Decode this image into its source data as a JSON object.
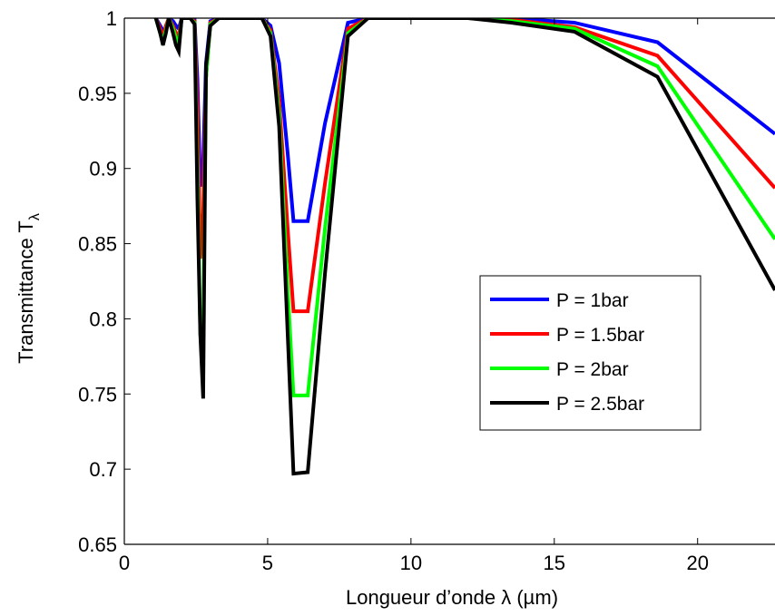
{
  "chart_data": {
    "type": "line",
    "xlabel": "Longueur d’onde λ (µm)",
    "ylabel": "Transmittance T",
    "ylabel_subscript": "λ",
    "xlim": [
      0,
      22.7
    ],
    "ylim": [
      0.65,
      1.0
    ],
    "x_ticks": [
      0,
      5,
      10,
      15,
      20
    ],
    "x_tick_labels": [
      "0",
      "5",
      "10",
      "15",
      "20"
    ],
    "y_ticks": [
      0.65,
      0.7,
      0.75,
      0.8,
      0.85,
      0.9,
      0.95,
      1
    ],
    "y_tick_labels": [
      "0.65",
      "0.7",
      "0.75",
      "0.8",
      "0.85",
      "0.9",
      "0.95",
      "1"
    ],
    "grid": false,
    "legend_position": "right",
    "series": [
      {
        "name": "P = 1bar",
        "color": "#0000ff",
        "x": [
          1.1,
          1.25,
          1.4,
          1.55,
          1.7,
          1.8,
          1.9,
          2.0,
          2.1,
          2.3,
          2.45,
          2.55,
          2.65,
          2.75,
          2.85,
          3.0,
          3.3,
          4.0,
          4.8,
          5.1,
          5.4,
          5.7,
          5.9,
          6.4,
          7.0,
          7.8,
          8.5,
          10,
          12,
          13.5,
          15.7,
          18.6,
          22.7
        ],
        "y": [
          1.0,
          0.995,
          0.99,
          1.0,
          0.998,
          0.995,
          0.993,
          1.0,
          1.0,
          1.0,
          0.999,
          0.96,
          0.888,
          0.905,
          0.97,
          0.998,
          1.0,
          1.0,
          1.0,
          0.995,
          0.97,
          0.91,
          0.865,
          0.865,
          0.93,
          0.997,
          1.0,
          1.0,
          1.0,
          1.0,
          0.997,
          0.984,
          0.923
        ]
      },
      {
        "name": "P = 1.5bar",
        "color": "#ff0000",
        "x": [
          1.1,
          1.25,
          1.35,
          1.45,
          1.55,
          1.7,
          1.8,
          1.9,
          2.0,
          2.1,
          2.3,
          2.45,
          2.55,
          2.65,
          2.75,
          2.85,
          3.0,
          3.3,
          4.0,
          4.8,
          5.1,
          5.4,
          5.7,
          5.9,
          6.4,
          7.0,
          7.8,
          8.5,
          10,
          12,
          13.5,
          15.7,
          18.6,
          22.7
        ],
        "y": [
          1.0,
          0.993,
          0.987,
          0.995,
          1.0,
          0.995,
          0.99,
          0.988,
          1.0,
          1.0,
          1.0,
          0.998,
          0.94,
          0.84,
          0.87,
          0.96,
          0.997,
          1.0,
          1.0,
          1.0,
          0.992,
          0.945,
          0.86,
          0.805,
          0.805,
          0.89,
          0.993,
          1.0,
          1.0,
          1.0,
          0.999,
          0.994,
          0.975,
          0.887
        ]
      },
      {
        "name": "P = 2bar",
        "color": "#00ff00",
        "x": [
          1.1,
          1.25,
          1.35,
          1.45,
          1.55,
          1.7,
          1.8,
          1.9,
          2.0,
          2.1,
          2.3,
          2.45,
          2.55,
          2.65,
          2.75,
          2.85,
          3.0,
          3.3,
          4.0,
          4.8,
          5.1,
          5.4,
          5.7,
          5.9,
          6.4,
          7.0,
          7.8,
          8.5,
          10,
          12,
          13.5,
          15.7,
          18.6,
          22.7
        ],
        "y": [
          1.0,
          0.99,
          0.985,
          0.992,
          1.0,
          0.993,
          0.987,
          0.983,
          1.0,
          1.0,
          1.0,
          0.997,
          0.9,
          0.79,
          0.79,
          0.96,
          0.996,
          1.0,
          1.0,
          1.0,
          0.99,
          0.935,
          0.82,
          0.749,
          0.749,
          0.86,
          0.99,
          1.0,
          1.0,
          1.0,
          0.998,
          0.993,
          0.968,
          0.853
        ]
      },
      {
        "name": "P = 2.5bar",
        "color": "#000000",
        "x": [
          1.1,
          1.25,
          1.35,
          1.45,
          1.55,
          1.7,
          1.8,
          1.9,
          2.0,
          2.1,
          2.3,
          2.45,
          2.55,
          2.65,
          2.75,
          2.85,
          3.0,
          3.3,
          4.0,
          4.8,
          5.1,
          5.4,
          5.7,
          5.9,
          6.4,
          7.0,
          7.8,
          8.5,
          10,
          12,
          13.5,
          15.7,
          18.6,
          22.7
        ],
        "y": [
          1.0,
          0.99,
          0.982,
          0.99,
          1.0,
          0.99,
          0.982,
          0.978,
          1.0,
          1.0,
          1.0,
          0.996,
          0.88,
          0.79,
          0.747,
          0.968,
          0.995,
          1.0,
          1.0,
          1.0,
          0.988,
          0.928,
          0.79,
          0.697,
          0.698,
          0.83,
          0.988,
          1.0,
          1.0,
          1.0,
          0.997,
          0.991,
          0.961,
          0.819
        ]
      }
    ]
  }
}
